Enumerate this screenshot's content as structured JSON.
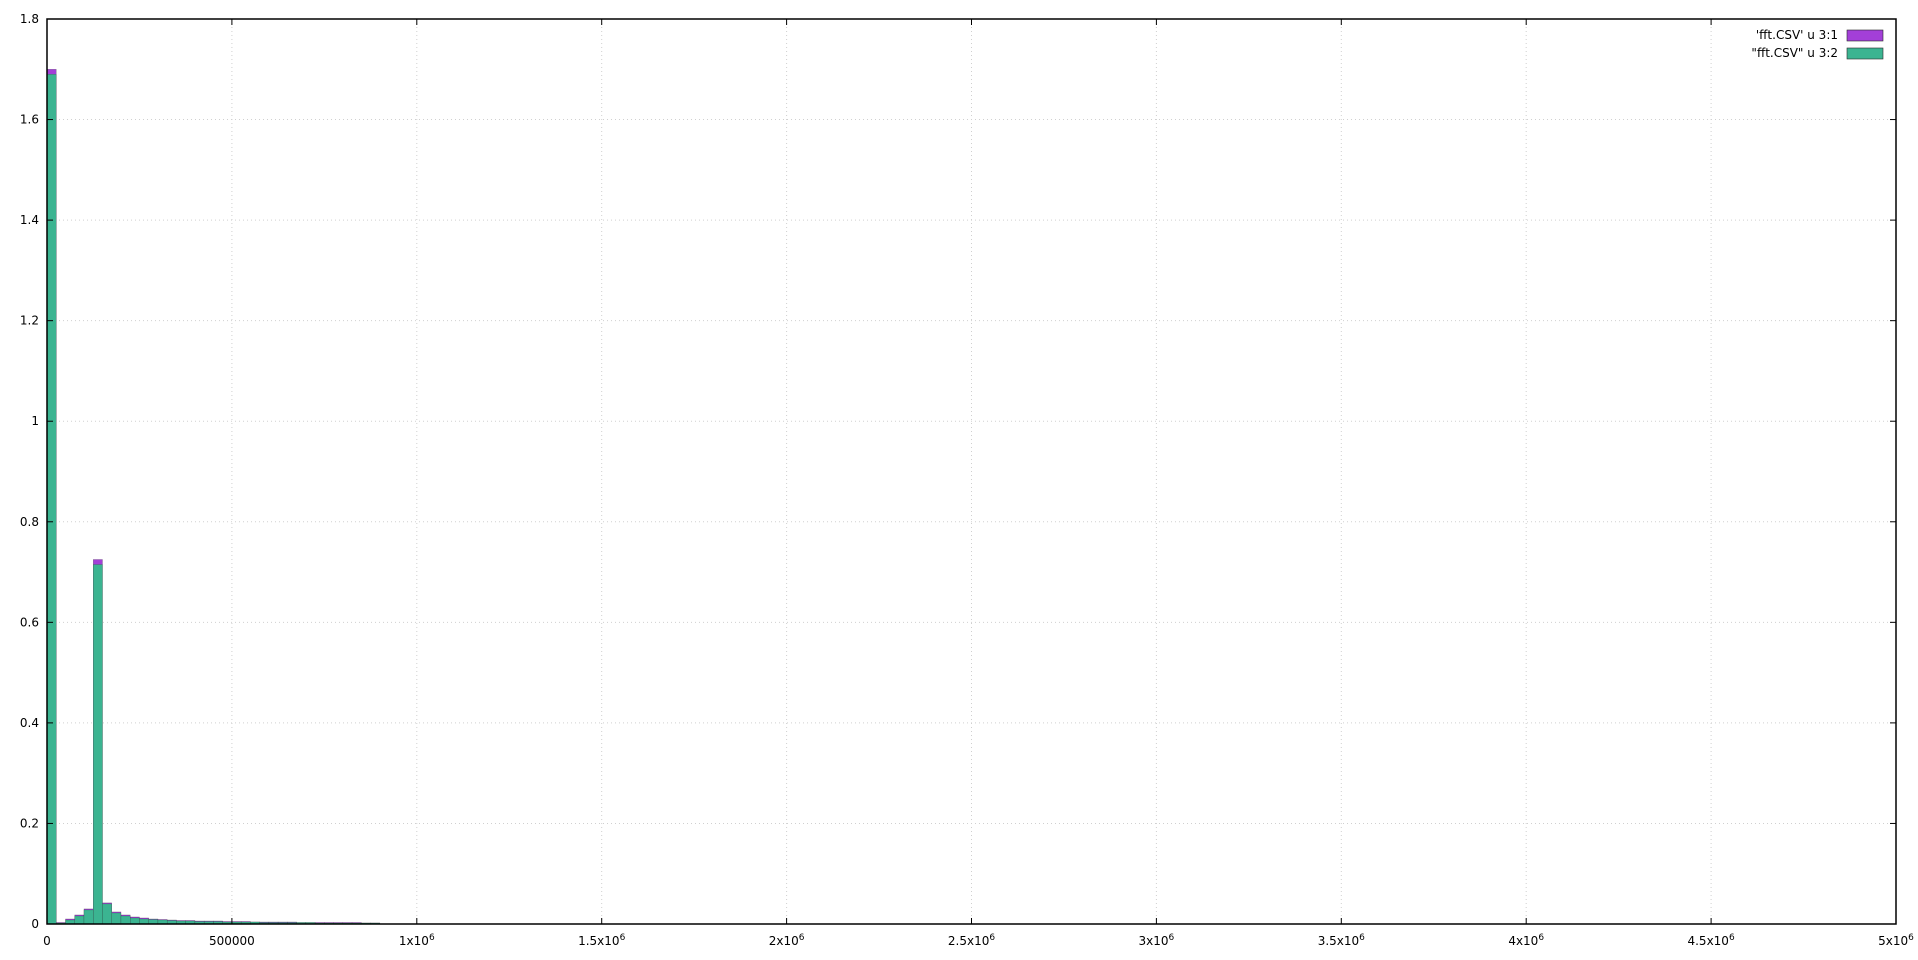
{
  "chart_data": {
    "type": "bar",
    "title": "",
    "xlabel": "",
    "ylabel": "",
    "xlim": [
      0,
      5000000
    ],
    "ylim": [
      0,
      1.8
    ],
    "grid": true,
    "legend_position": "top-right",
    "x_ticks": [
      {
        "value": 0,
        "label": "0"
      },
      {
        "value": 500000,
        "label": "500000"
      },
      {
        "value": 1000000,
        "mant": "1",
        "label": "1x10",
        "sup": "6"
      },
      {
        "value": 1500000,
        "mant": "1.5",
        "label": "1.5x10",
        "sup": "6"
      },
      {
        "value": 2000000,
        "mant": "2",
        "label": "2x10",
        "sup": "6"
      },
      {
        "value": 2500000,
        "mant": "2.5",
        "label": "2.5x10",
        "sup": "6"
      },
      {
        "value": 3000000,
        "mant": "3",
        "label": "3x10",
        "sup": "6"
      },
      {
        "value": 3500000,
        "mant": "3.5",
        "label": "3.5x10",
        "sup": "6"
      },
      {
        "value": 4000000,
        "mant": "4",
        "label": "4x10",
        "sup": "6"
      },
      {
        "value": 4500000,
        "mant": "4.5",
        "label": "4.5x10",
        "sup": "6"
      },
      {
        "value": 5000000,
        "mant": "5",
        "label": "5x10",
        "sup": "6"
      }
    ],
    "y_ticks": [
      {
        "value": 0,
        "label": "0"
      },
      {
        "value": 0.2,
        "label": "0.2"
      },
      {
        "value": 0.4,
        "label": "0.4"
      },
      {
        "value": 0.6,
        "label": "0.6"
      },
      {
        "value": 0.8,
        "label": "0.8"
      },
      {
        "value": 1,
        "label": "1"
      },
      {
        "value": 1.2,
        "label": "1.2"
      },
      {
        "value": 1.4,
        "label": "1.4"
      },
      {
        "value": 1.6,
        "label": "1.6"
      },
      {
        "value": 1.8,
        "label": "1.8"
      }
    ],
    "bin_width": 25000,
    "x": [
      0,
      25000,
      50000,
      75000,
      100000,
      125000,
      150000,
      175000,
      200000,
      225000,
      250000,
      275000,
      300000,
      325000,
      350000,
      375000,
      400000,
      425000,
      450000,
      475000,
      500000,
      525000,
      550000,
      575000,
      600000,
      625000,
      650000,
      675000,
      700000,
      725000,
      750000,
      775000,
      800000,
      825000,
      850000,
      875000
    ],
    "series": [
      {
        "name": "'fft.CSV' u 3:1",
        "color": "#a33fd8",
        "values": [
          1.7,
          0.003,
          0.01,
          0.018,
          0.03,
          0.725,
          0.042,
          0.024,
          0.018,
          0.014,
          0.012,
          0.01,
          0.009,
          0.008,
          0.007,
          0.007,
          0.006,
          0.006,
          0.006,
          0.005,
          0.005,
          0.005,
          0.004,
          0.004,
          0.004,
          0.004,
          0.004,
          0.003,
          0.003,
          0.003,
          0.003,
          0.003,
          0.003,
          0.003,
          0.002,
          0.002
        ]
      },
      {
        "name": "\"fft.CSV\" u 3:2",
        "color": "#3bb491",
        "values": [
          1.69,
          0.002,
          0.008,
          0.016,
          0.028,
          0.715,
          0.04,
          0.022,
          0.016,
          0.012,
          0.01,
          0.009,
          0.008,
          0.007,
          0.006,
          0.006,
          0.005,
          0.005,
          0.005,
          0.004,
          0.004,
          0.004,
          0.004,
          0.003,
          0.003,
          0.003,
          0.003,
          0.003,
          0.003,
          0.002,
          0.002,
          0.002,
          0.002,
          0.002,
          0.002,
          0.002
        ]
      }
    ]
  }
}
